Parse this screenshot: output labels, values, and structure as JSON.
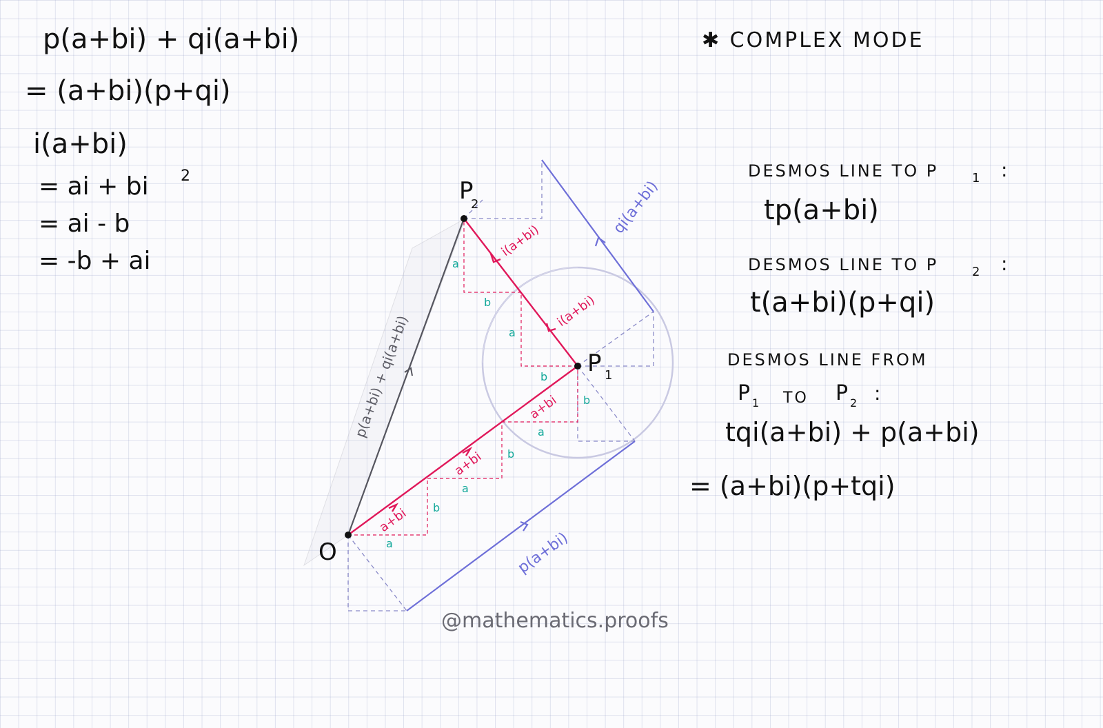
{
  "left_derivation": {
    "line1": "p(a+bi) + qi(a+bi)",
    "line2": "= (a+bi)(p+qi)",
    "line3": "i(a+bi)",
    "line4": "= ai + bi",
    "line4_sup": "2",
    "line5": "= ai - b",
    "line6": "= -b + ai"
  },
  "mode_label": "✱ COMPLEX MODE",
  "desmos_p1": {
    "heading": "DESMOS LINE TO P",
    "heading_sub": "1",
    "heading_colon": ":",
    "formula": "tp(a+bi)"
  },
  "desmos_p2": {
    "heading": "DESMOS LINE TO P",
    "heading_sub": "2",
    "heading_colon": ":",
    "formula": "t(a+bi)(p+qi)"
  },
  "desmos_p1p2": {
    "heading": "DESMOS LINE FROM",
    "sub_line_p1": "P",
    "sub_line_p1_sub": "1",
    "sub_line_to": "TO",
    "sub_line_p2": "P",
    "sub_line_p2_sub": "2",
    "sub_line_colon": ":",
    "formula": "tqi(a+bi) + p(a+bi)",
    "result": "= (a+bi)(p+tqi)"
  },
  "points": {
    "origin": "O",
    "p1": "P",
    "p1_sub": "1",
    "p2": "P",
    "p2_sub": "2"
  },
  "vector_labels": {
    "step": "a+bi",
    "rot_step": "i(a+bi)",
    "blue_bottom": "p(a+bi)",
    "blue_right": "qi(a+bi)",
    "gray_diag": "p(a+bi) + qi(a+bi)"
  },
  "component_labels": {
    "a": "a",
    "b": "b"
  },
  "watermark": "@mathematics.proofs",
  "colors": {
    "red": "#e0185a",
    "blue": "#6e6fd8",
    "teal": "#13a89a",
    "gray": "#5d5d66",
    "ink": "#111111"
  }
}
